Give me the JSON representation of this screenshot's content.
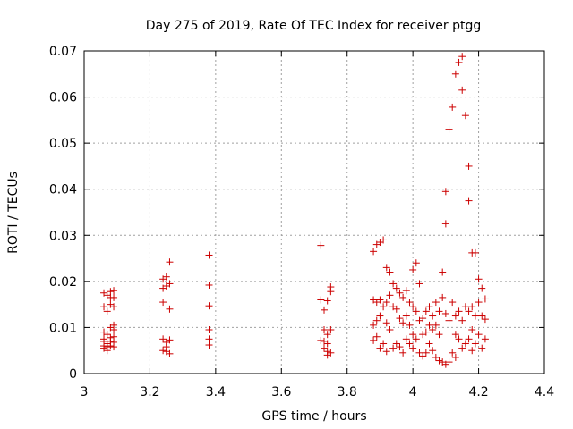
{
  "chart_data": {
    "type": "scatter",
    "title": "Day 275 of 2019, Rate Of TEC Index for receiver ptgg",
    "xlabel": "GPS time / hours",
    "ylabel": "ROTI / TECUs",
    "xlim": [
      3.0,
      4.4
    ],
    "ylim": [
      0.0,
      0.07
    ],
    "grid": true,
    "marker": "+",
    "color": "#cc0000",
    "x_ticks": [
      "3",
      "3.2",
      "3.4",
      "3.6",
      "3.8",
      "4",
      "4.2",
      "4.4"
    ],
    "y_ticks": [
      "0",
      "0.01",
      "0.02",
      "0.03",
      "0.04",
      "0.05",
      "0.06",
      "0.07"
    ],
    "series": [
      {
        "name": "ROTI",
        "x": [
          3.06,
          3.06,
          3.06,
          3.06,
          3.06,
          3.06,
          3.06,
          3.07,
          3.07,
          3.07,
          3.07,
          3.07,
          3.07,
          3.08,
          3.08,
          3.08,
          3.08,
          3.08,
          3.08,
          3.08,
          3.09,
          3.09,
          3.09,
          3.09,
          3.09,
          3.09,
          3.09,
          3.09,
          3.24,
          3.24,
          3.24,
          3.24,
          3.24,
          3.25,
          3.25,
          3.25,
          3.25,
          3.25,
          3.26,
          3.26,
          3.26,
          3.26,
          3.26,
          3.38,
          3.38,
          3.38,
          3.38,
          3.38,
          3.38,
          3.72,
          3.72,
          3.72,
          3.73,
          3.73,
          3.73,
          3.73,
          3.74,
          3.74,
          3.74,
          3.74,
          3.74,
          3.75,
          3.75,
          3.75,
          3.75,
          3.88,
          3.88,
          3.88,
          3.88,
          3.89,
          3.89,
          3.89,
          3.89,
          3.9,
          3.9,
          3.9,
          3.9,
          3.91,
          3.91,
          3.91,
          3.92,
          3.92,
          3.92,
          3.92,
          3.93,
          3.93,
          3.93,
          3.94,
          3.94,
          3.94,
          3.95,
          3.95,
          3.95,
          3.96,
          3.96,
          3.96,
          3.97,
          3.97,
          3.97,
          3.98,
          3.98,
          3.98,
          3.99,
          3.99,
          3.99,
          4.0,
          4.0,
          4.0,
          4.0,
          4.01,
          4.01,
          4.01,
          4.02,
          4.02,
          4.02,
          4.03,
          4.03,
          4.03,
          4.04,
          4.04,
          4.04,
          4.05,
          4.05,
          4.05,
          4.06,
          4.06,
          4.06,
          4.07,
          4.07,
          4.07,
          4.08,
          4.08,
          4.08,
          4.09,
          4.09,
          4.09,
          4.1,
          4.1,
          4.1,
          4.1,
          4.11,
          4.11,
          4.11,
          4.12,
          4.12,
          4.12,
          4.13,
          4.13,
          4.13,
          4.13,
          4.14,
          4.14,
          4.14,
          4.15,
          4.15,
          4.15,
          4.15,
          4.16,
          4.16,
          4.16,
          4.17,
          4.17,
          4.17,
          4.17,
          4.18,
          4.18,
          4.18,
          4.18,
          4.19,
          4.19,
          4.19,
          4.2,
          4.2,
          4.2,
          4.21,
          4.21,
          4.21,
          4.22,
          4.22,
          4.22
        ],
        "y": [
          0.0175,
          0.0145,
          0.009,
          0.0075,
          0.007,
          0.006,
          0.0055,
          0.017,
          0.0135,
          0.0085,
          0.0065,
          0.0058,
          0.005,
          0.0178,
          0.0165,
          0.015,
          0.01,
          0.0078,
          0.007,
          0.006,
          0.018,
          0.0165,
          0.0145,
          0.0105,
          0.0095,
          0.008,
          0.0068,
          0.0058,
          0.0155,
          0.0205,
          0.0185,
          0.0075,
          0.005,
          0.021,
          0.019,
          0.0068,
          0.0058,
          0.0048,
          0.0242,
          0.0195,
          0.014,
          0.0073,
          0.0043,
          0.0257,
          0.0192,
          0.0147,
          0.0095,
          0.0075,
          0.0062,
          0.0278,
          0.016,
          0.0072,
          0.0138,
          0.0095,
          0.007,
          0.0055,
          0.0158,
          0.0085,
          0.0065,
          0.0048,
          0.004,
          0.0188,
          0.0178,
          0.0095,
          0.0045,
          0.0265,
          0.016,
          0.0105,
          0.0072,
          0.028,
          0.0155,
          0.0115,
          0.008,
          0.0285,
          0.016,
          0.0125,
          0.0055,
          0.029,
          0.0145,
          0.0065,
          0.023,
          0.0155,
          0.011,
          0.0048,
          0.022,
          0.017,
          0.0095,
          0.0195,
          0.0145,
          0.0055,
          0.0185,
          0.014,
          0.0065,
          0.0175,
          0.012,
          0.0058,
          0.0165,
          0.011,
          0.0045,
          0.018,
          0.0125,
          0.0075,
          0.0155,
          0.0105,
          0.0065,
          0.0225,
          0.0145,
          0.0085,
          0.0055,
          0.024,
          0.0135,
          0.0075,
          0.0195,
          0.0115,
          0.0045,
          0.012,
          0.0085,
          0.0038,
          0.0135,
          0.009,
          0.0045,
          0.0145,
          0.0105,
          0.0065,
          0.0125,
          0.0095,
          0.005,
          0.0155,
          0.0105,
          0.0035,
          0.0135,
          0.0085,
          0.0028,
          0.022,
          0.0165,
          0.0025,
          0.0325,
          0.0395,
          0.013,
          0.002,
          0.053,
          0.0115,
          0.0025,
          0.0578,
          0.0155,
          0.0045,
          0.065,
          0.0125,
          0.0085,
          0.0035,
          0.0675,
          0.0135,
          0.0075,
          0.0688,
          0.0615,
          0.0115,
          0.0055,
          0.056,
          0.0145,
          0.0065,
          0.045,
          0.0375,
          0.0135,
          0.0075,
          0.0262,
          0.0145,
          0.0095,
          0.005,
          0.0262,
          0.0125,
          0.0065,
          0.0205,
          0.0155,
          0.0085,
          0.0185,
          0.0125,
          0.0055,
          0.0162,
          0.0118,
          0.0075
        ]
      }
    ]
  }
}
